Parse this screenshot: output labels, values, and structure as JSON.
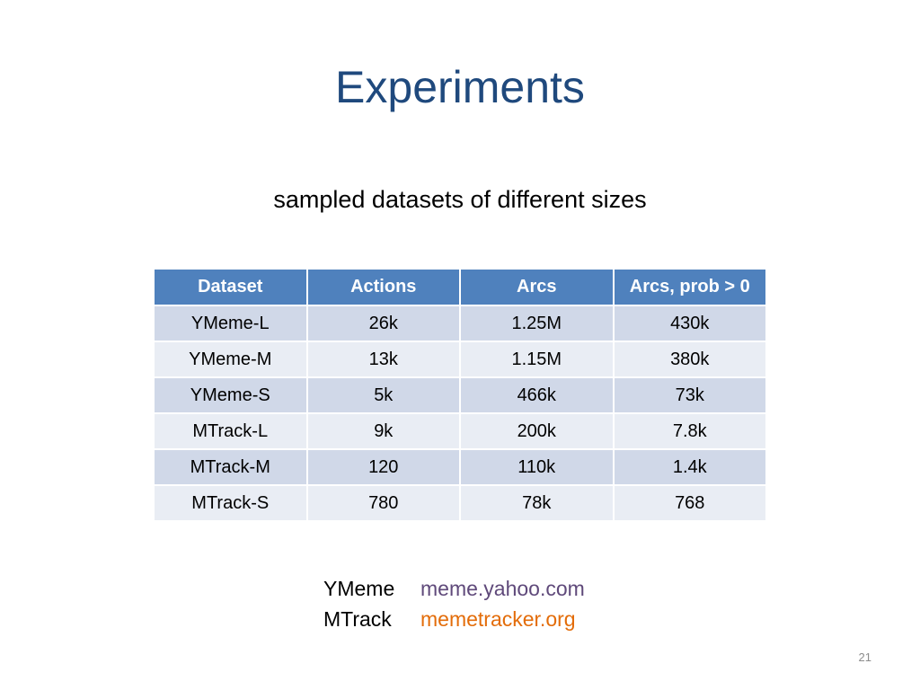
{
  "slide": {
    "title": "Experiments",
    "subtitle": "sampled datasets of different sizes",
    "page_number": "21"
  },
  "table": {
    "headers": [
      "Dataset",
      "Actions",
      "Arcs",
      "Arcs, prob > 0"
    ],
    "rows": [
      [
        "YMeme-L",
        "26k",
        "1.25M",
        "430k"
      ],
      [
        "YMeme-M",
        "13k",
        "1.15M",
        "380k"
      ],
      [
        "YMeme-S",
        "5k",
        "466k",
        "73k"
      ],
      [
        "MTrack-L",
        "9k",
        "200k",
        "7.8k"
      ],
      [
        "MTrack-M",
        "120",
        "110k",
        "1.4k"
      ],
      [
        "MTrack-S",
        "780",
        "78k",
        "768"
      ]
    ]
  },
  "sources": [
    {
      "name": "YMeme",
      "url_text": "meme.yahoo.com",
      "color": "#5f497a"
    },
    {
      "name": "MTrack",
      "url_text": "memetracker.org",
      "color": "#e36c09"
    }
  ],
  "colors": {
    "title": "#1f497d",
    "header_bg": "#4f81bd",
    "row_odd_bg": "#d0d8e8",
    "row_even_bg": "#e9edf4"
  }
}
